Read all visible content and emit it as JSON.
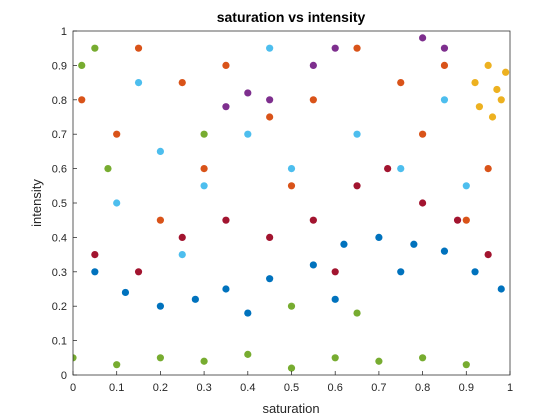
{
  "chart_data": {
    "type": "scatter",
    "title": "saturation vs intensity",
    "xlabel": "saturation",
    "ylabel": "intensity",
    "xlim": [
      0,
      1
    ],
    "ylim": [
      0,
      1
    ],
    "xticks": [
      "0",
      "0.1",
      "0.2",
      "0.3",
      "0.4",
      "0.5",
      "0.6",
      "0.7",
      "0.8",
      "0.9",
      "1"
    ],
    "yticks": [
      "0",
      "0.1",
      "0.2",
      "0.3",
      "0.4",
      "0.5",
      "0.6",
      "0.7",
      "0.8",
      "0.9",
      "1"
    ],
    "grid": false,
    "legend": "none",
    "series": [
      {
        "color": "#0072BD",
        "description": "dense band of points, intensity roughly 0.15-0.48 across saturation 0-1",
        "points": [
          [
            0.05,
            0.3
          ],
          [
            0.12,
            0.24
          ],
          [
            0.2,
            0.2
          ],
          [
            0.28,
            0.22
          ],
          [
            0.35,
            0.25
          ],
          [
            0.45,
            0.28
          ],
          [
            0.55,
            0.32
          ],
          [
            0.62,
            0.38
          ],
          [
            0.7,
            0.4
          ],
          [
            0.78,
            0.38
          ],
          [
            0.85,
            0.36
          ],
          [
            0.92,
            0.3
          ],
          [
            0.98,
            0.25
          ],
          [
            0.4,
            0.18
          ],
          [
            0.6,
            0.22
          ],
          [
            0.75,
            0.3
          ]
        ]
      },
      {
        "color": "#D95319",
        "description": "widespread points covering most of the plot, especially upper region",
        "points": [
          [
            0.02,
            0.8
          ],
          [
            0.1,
            0.7
          ],
          [
            0.15,
            0.95
          ],
          [
            0.25,
            0.85
          ],
          [
            0.35,
            0.9
          ],
          [
            0.45,
            0.75
          ],
          [
            0.55,
            0.8
          ],
          [
            0.65,
            0.95
          ],
          [
            0.75,
            0.85
          ],
          [
            0.85,
            0.9
          ],
          [
            0.95,
            0.6
          ],
          [
            0.3,
            0.6
          ],
          [
            0.5,
            0.55
          ],
          [
            0.2,
            0.45
          ],
          [
            0.8,
            0.7
          ],
          [
            0.9,
            0.45
          ]
        ]
      },
      {
        "color": "#EDB120",
        "description": "cluster at high saturation and high intensity",
        "points": [
          [
            0.92,
            0.85
          ],
          [
            0.95,
            0.9
          ],
          [
            0.98,
            0.8
          ],
          [
            0.96,
            0.75
          ],
          [
            0.99,
            0.88
          ],
          [
            0.93,
            0.78
          ],
          [
            0.97,
            0.83
          ]
        ]
      },
      {
        "color": "#7E2F8E",
        "description": "points in upper middle region",
        "points": [
          [
            0.35,
            0.78
          ],
          [
            0.4,
            0.82
          ],
          [
            0.55,
            0.9
          ],
          [
            0.6,
            0.95
          ],
          [
            0.8,
            0.98
          ],
          [
            0.85,
            0.95
          ],
          [
            0.45,
            0.8
          ]
        ]
      },
      {
        "color": "#77AC30",
        "description": "points along low-intensity arcs and the left edge",
        "points": [
          [
            0.0,
            0.05
          ],
          [
            0.02,
            0.9
          ],
          [
            0.05,
            0.95
          ],
          [
            0.08,
            0.6
          ],
          [
            0.1,
            0.03
          ],
          [
            0.2,
            0.05
          ],
          [
            0.3,
            0.04
          ],
          [
            0.4,
            0.06
          ],
          [
            0.5,
            0.02
          ],
          [
            0.6,
            0.05
          ],
          [
            0.7,
            0.04
          ],
          [
            0.8,
            0.05
          ],
          [
            0.9,
            0.03
          ],
          [
            0.5,
            0.2
          ],
          [
            0.65,
            0.18
          ],
          [
            0.3,
            0.7
          ]
        ]
      },
      {
        "color": "#4DBEEE",
        "description": "points spread across upper and middle areas",
        "points": [
          [
            0.1,
            0.5
          ],
          [
            0.2,
            0.65
          ],
          [
            0.3,
            0.55
          ],
          [
            0.4,
            0.7
          ],
          [
            0.5,
            0.6
          ],
          [
            0.65,
            0.7
          ],
          [
            0.75,
            0.6
          ],
          [
            0.85,
            0.8
          ],
          [
            0.15,
            0.85
          ],
          [
            0.45,
            0.95
          ],
          [
            0.9,
            0.55
          ],
          [
            0.25,
            0.35
          ]
        ]
      },
      {
        "color": "#A2142F",
        "description": "points concentrated in middle intensity band",
        "points": [
          [
            0.05,
            0.35
          ],
          [
            0.15,
            0.3
          ],
          [
            0.25,
            0.4
          ],
          [
            0.35,
            0.45
          ],
          [
            0.45,
            0.4
          ],
          [
            0.55,
            0.45
          ],
          [
            0.65,
            0.55
          ],
          [
            0.72,
            0.6
          ],
          [
            0.8,
            0.5
          ],
          [
            0.88,
            0.45
          ],
          [
            0.95,
            0.35
          ],
          [
            0.6,
            0.3
          ]
        ]
      }
    ]
  }
}
